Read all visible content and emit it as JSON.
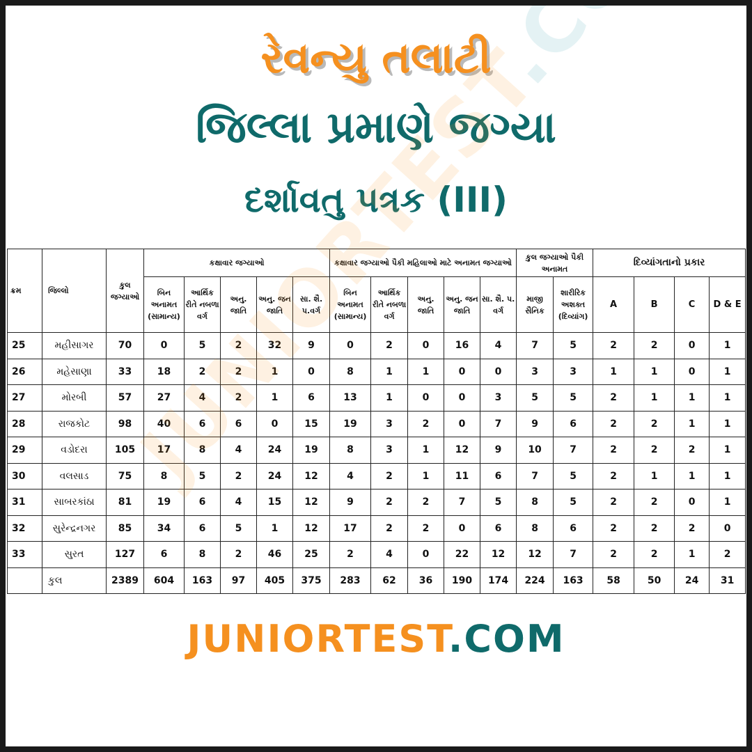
{
  "title": {
    "line1": "રેવન્યુ તલાટી",
    "line2": "જિલ્લા પ્રમાણે જગ્યા",
    "line3": "દર્શાવતુ પત્રક (III)"
  },
  "colors": {
    "orange": "#f5901f",
    "teal": "#0f6a6a"
  },
  "table": {
    "headers": {
      "sr": "ક્રમ",
      "district": "જિલ્લો",
      "total": "કુલ જગ્યાઓ",
      "group_category": "કક્ષાવાર જગ્યાઓ",
      "group_women": "કક્ષાવાર જગ્યાઓ પૈકી મહિલાઓ માટે અનામત જગ્યાઓ",
      "group_reserved": "કુલ જગ્યાઓ પૈકી અનામત",
      "group_disability": "દિવ્યાંગતાનો પ્રકાર",
      "category_cols": [
        "બિન અનામત (સામાન્ય)",
        "આર્થિક રીતે નબળા વર્ગ",
        "અનુ. જાતિ",
        "અનુ. જન જાતિ",
        "સા. શૈ. પ.વર્ગ"
      ],
      "women_cols": [
        "બિન અનામત (સામાન્ય)",
        "આર્થિક રીતે નબળા વર્ગ",
        "અનુ. જાતિ",
        "અનુ. જન જાતિ",
        "સા. શૈ. પ. વર્ગ"
      ],
      "reserved_cols": [
        "માજી સૈનિક",
        "શારીરિક અશક્ત (દિવ્યાંગ)"
      ],
      "disability_cols": [
        "A",
        "B",
        "C",
        "D & E"
      ]
    },
    "rows": [
      {
        "sr": "25",
        "district": "મહીસાગર",
        "values": [
          "70",
          "0",
          "5",
          "2",
          "32",
          "9",
          "0",
          "2",
          "0",
          "16",
          "4",
          "7",
          "5",
          "2",
          "2",
          "0",
          "1"
        ]
      },
      {
        "sr": "26",
        "district": "મહેસાણા",
        "values": [
          "33",
          "18",
          "2",
          "2",
          "1",
          "0",
          "8",
          "1",
          "1",
          "0",
          "0",
          "3",
          "3",
          "1",
          "1",
          "0",
          "1"
        ]
      },
      {
        "sr": "27",
        "district": "મોરબી",
        "values": [
          "57",
          "27",
          "4",
          "2",
          "1",
          "6",
          "13",
          "1",
          "0",
          "0",
          "3",
          "5",
          "5",
          "2",
          "1",
          "1",
          "1"
        ]
      },
      {
        "sr": "28",
        "district": "રાજકોટ",
        "values": [
          "98",
          "40",
          "6",
          "6",
          "0",
          "15",
          "19",
          "3",
          "2",
          "0",
          "7",
          "9",
          "6",
          "2",
          "2",
          "1",
          "1"
        ]
      },
      {
        "sr": "29",
        "district": "વડોદરા",
        "values": [
          "105",
          "17",
          "8",
          "4",
          "24",
          "19",
          "8",
          "3",
          "1",
          "12",
          "9",
          "10",
          "7",
          "2",
          "2",
          "2",
          "1"
        ]
      },
      {
        "sr": "30",
        "district": "વલસાડ",
        "values": [
          "75",
          "8",
          "5",
          "2",
          "24",
          "12",
          "4",
          "2",
          "1",
          "11",
          "6",
          "7",
          "5",
          "2",
          "1",
          "1",
          "1"
        ]
      },
      {
        "sr": "31",
        "district": "સાબરકાંઠા",
        "values": [
          "81",
          "19",
          "6",
          "4",
          "15",
          "12",
          "9",
          "2",
          "2",
          "7",
          "5",
          "8",
          "5",
          "2",
          "2",
          "0",
          "1"
        ]
      },
      {
        "sr": "32",
        "district": "સુરેન્દ્રનગર",
        "values": [
          "85",
          "34",
          "6",
          "5",
          "1",
          "12",
          "17",
          "2",
          "2",
          "0",
          "6",
          "8",
          "6",
          "2",
          "2",
          "2",
          "0"
        ]
      },
      {
        "sr": "33",
        "district": "સુરત",
        "values": [
          "127",
          "6",
          "8",
          "2",
          "46",
          "25",
          "2",
          "4",
          "0",
          "22",
          "12",
          "12",
          "7",
          "2",
          "2",
          "1",
          "2"
        ]
      }
    ],
    "total_row": {
      "sr": "",
      "label": "કુલ",
      "values": [
        "2389",
        "604",
        "163",
        "97",
        "405",
        "375",
        "283",
        "62",
        "36",
        "190",
        "174",
        "224",
        "163",
        "58",
        "50",
        "24",
        "31"
      ]
    }
  },
  "watermark": {
    "part1": "JUNIORTEST",
    "part2": ".COM"
  },
  "logo": {
    "part1": "JUNIORTEST",
    "part2": ".COM"
  }
}
